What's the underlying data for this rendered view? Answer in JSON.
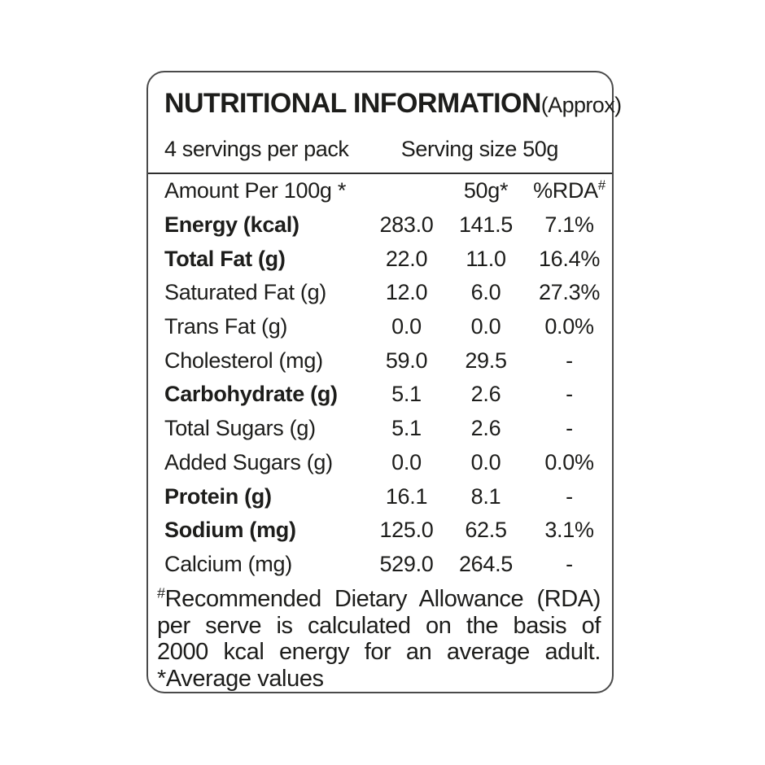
{
  "label": {
    "title": "NUTRITIONAL INFORMATION",
    "title_suffix": "(Approx)",
    "servings_per_pack": "4 servings per pack",
    "serving_size": "Serving size 50g",
    "columns": {
      "amount_header": "Amount Per 100g *",
      "serve_header": "50g*",
      "rda_header": "%RDA",
      "rda_header_marker": "#"
    },
    "rows": [
      {
        "label": "Energy (kcal)",
        "bold": true,
        "per_100g": "283.0",
        "per_50g": "141.5",
        "rda": "7.1%"
      },
      {
        "label": "Total Fat (g)",
        "bold": true,
        "per_100g": "22.0",
        "per_50g": "11.0",
        "rda": "16.4%"
      },
      {
        "label": "Saturated Fat (g)",
        "bold": false,
        "per_100g": "12.0",
        "per_50g": "6.0",
        "rda": "27.3%"
      },
      {
        "label": "Trans Fat (g)",
        "bold": false,
        "per_100g": "0.0",
        "per_50g": "0.0",
        "rda": "0.0%"
      },
      {
        "label": "Cholesterol (mg)",
        "bold": false,
        "per_100g": "59.0",
        "per_50g": "29.5",
        "rda": "-"
      },
      {
        "label": "Carbohydrate (g)",
        "bold": true,
        "per_100g": "5.1",
        "per_50g": "2.6",
        "rda": "-"
      },
      {
        "label": "Total Sugars (g)",
        "bold": false,
        "per_100g": "5.1",
        "per_50g": "2.6",
        "rda": "-"
      },
      {
        "label": "Added Sugars (g)",
        "bold": false,
        "per_100g": "0.0",
        "per_50g": "0.0",
        "rda": "0.0%"
      },
      {
        "label": "Protein (g)",
        "bold": true,
        "per_100g": "16.1",
        "per_50g": "8.1",
        "rda": "-"
      },
      {
        "label": "Sodium (mg)",
        "bold": true,
        "per_100g": "125.0",
        "per_50g": "62.5",
        "rda": "3.1%"
      },
      {
        "label": "Calcium (mg)",
        "bold": false,
        "per_100g": "529.0",
        "per_50g": "264.5",
        "rda": "-"
      }
    ],
    "footnotes": {
      "rda_marker": "#",
      "rda_note_lines": [
        "Recommended Dietary Allowance (RDA)",
        "per serve is calculated on the basis of",
        "2000 kcal energy for an average adult."
      ],
      "average_note": "*Average values"
    }
  },
  "colors": {
    "text": "#1d1d1b",
    "border": "#4a4a4a",
    "divider": "#2e2e2e",
    "background": "#ffffff"
  }
}
